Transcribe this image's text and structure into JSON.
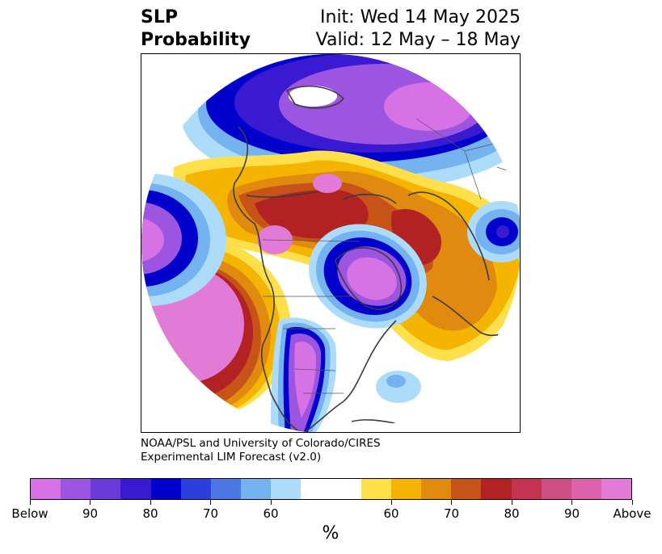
{
  "header": {
    "title_line1": "SLP",
    "title_line2": "Probability",
    "init_text": "Init: Wed 14 May 2025",
    "valid_text": "Valid: 12 May – 18 May"
  },
  "credit": {
    "line1": "NOAA/PSL and University of Colorado/CIRES",
    "line2": "Experimental LIM Forecast (v2.0)"
  },
  "colorbar": {
    "unit": "%",
    "colors": [
      "#d672e6",
      "#9c55e0",
      "#6a3ad8",
      "#3a1ad0",
      "#0000cc",
      "#2a3fdc",
      "#4c78e6",
      "#74b2f0",
      "#acdcfa",
      "#ffffff",
      "#ffffff",
      "#ffe04a",
      "#f4b400",
      "#e08a10",
      "#c65418",
      "#b22222",
      "#c43450",
      "#d04e86",
      "#dc62ac",
      "#e27ad8"
    ],
    "labels": [
      "Below",
      "90",
      "80",
      "70",
      "60",
      "60",
      "70",
      "80",
      "90",
      "Above"
    ]
  },
  "map": {
    "projection": "north-polar",
    "palette": {
      "below_strong": "#d672e6",
      "below_90": "#9c55e0",
      "below_80": "#6a3ad8",
      "below_70": "#0000cc",
      "below_60": "#4c78e6",
      "below_50": "#acdcfa",
      "above_50": "#ffe04a",
      "above_60": "#f4b400",
      "above_70": "#e08a10",
      "above_80": "#c65418",
      "above_90": "#b22222",
      "above_strong": "#e27ad8"
    }
  }
}
